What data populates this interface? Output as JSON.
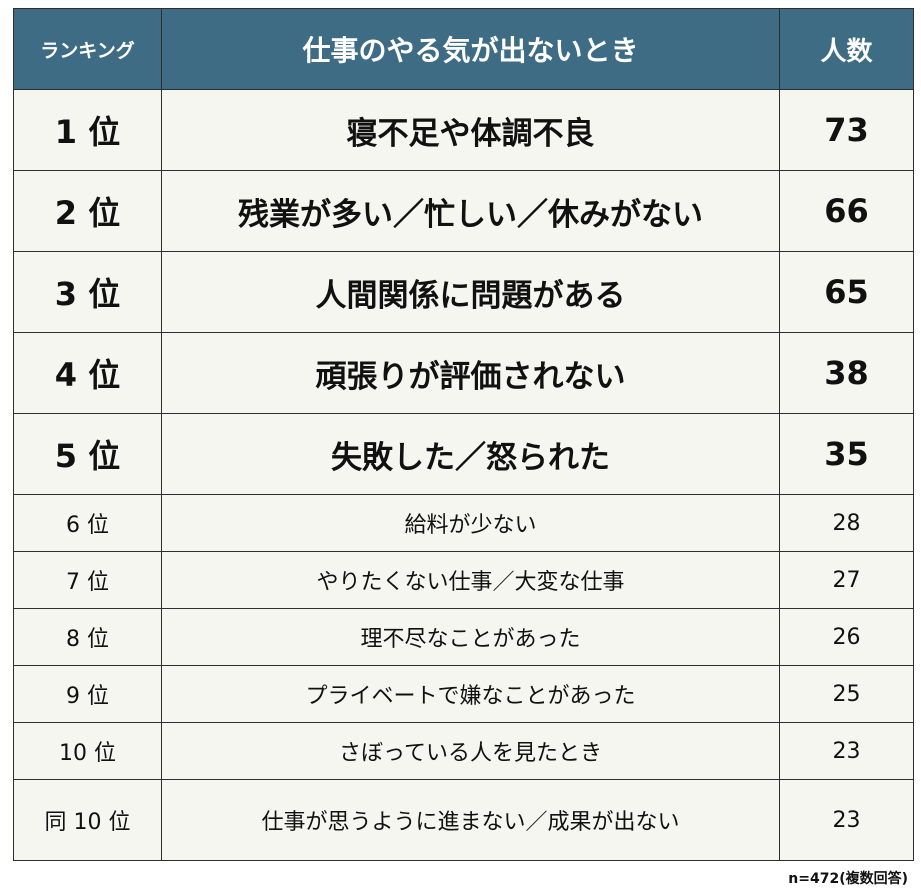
{
  "chart_data": {
    "type": "table",
    "title": "仕事のやる気が出ないとき",
    "columns": [
      "ランキング",
      "仕事のやる気が出ないとき",
      "人数"
    ],
    "rows": [
      {
        "rank": "1 位",
        "reason": "寝不足や体調不良",
        "count": 73
      },
      {
        "rank": "2 位",
        "reason": "残業が多い／忙しい／休みがない",
        "count": 66
      },
      {
        "rank": "3 位",
        "reason": "人間関係に問題がある",
        "count": 65
      },
      {
        "rank": "4 位",
        "reason": "頑張りが評価されない",
        "count": 38
      },
      {
        "rank": "5 位",
        "reason": "失敗した／怒られた",
        "count": 35
      },
      {
        "rank": "6 位",
        "reason": "給料が少ない",
        "count": 28
      },
      {
        "rank": "7 位",
        "reason": "やりたくない仕事／大変な仕事",
        "count": 27
      },
      {
        "rank": "8 位",
        "reason": "理不尽なことがあった",
        "count": 26
      },
      {
        "rank": "9 位",
        "reason": "プライベートで嫌なことがあった",
        "count": 25
      },
      {
        "rank": "10 位",
        "reason": "さぼっている人を見たとき",
        "count": 23
      },
      {
        "rank": "同 10 位",
        "reason": "仕事が思うように進まない／成果が出ない",
        "count": 23
      }
    ],
    "note": "n=472(複数回答)"
  },
  "colors": {
    "header_bg": "#3e6c85",
    "header_text": "#ffffff",
    "cell_bg": "#f6f6f1",
    "border": "#2e2e2e"
  }
}
